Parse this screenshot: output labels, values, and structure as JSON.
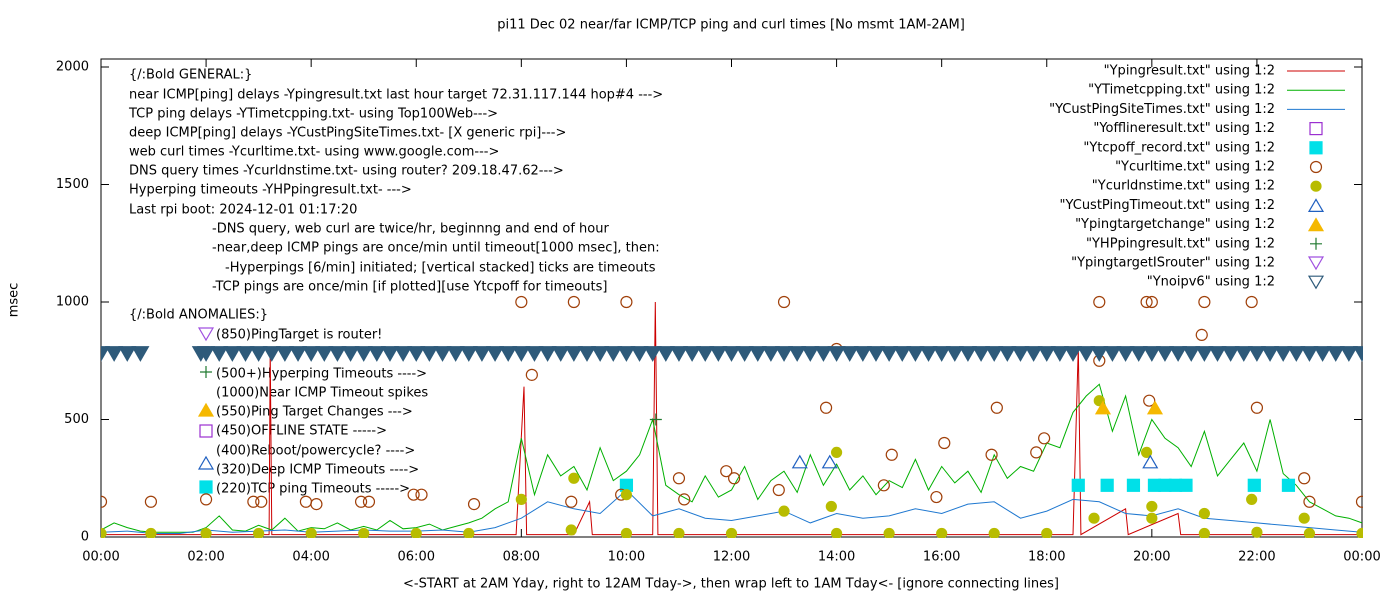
{
  "chart_data": {
    "type": "line",
    "title": "pi11 Dec 02  near/far ICMP/TCP ping and curl times [No msmt 1AM-2AM]",
    "x_label": "<-START at 2AM Yday, right to 12AM Tday->, then wrap left to 1AM Tday<- [ignore connecting lines]",
    "y_label": "msec",
    "xlim": [
      0,
      24
    ],
    "ylim": [
      0,
      2000
    ],
    "xticks": [
      {
        "value": 0,
        "label": "00:00"
      },
      {
        "value": 2,
        "label": "02:00"
      },
      {
        "value": 4,
        "label": "04:00"
      },
      {
        "value": 6,
        "label": "06:00"
      },
      {
        "value": 8,
        "label": "08:00"
      },
      {
        "value": 10,
        "label": "10:00"
      },
      {
        "value": 12,
        "label": "12:00"
      },
      {
        "value": 14,
        "label": "14:00"
      },
      {
        "value": 16,
        "label": "16:00"
      },
      {
        "value": 18,
        "label": "18:00"
      },
      {
        "value": 20,
        "label": "20:00"
      },
      {
        "value": 22,
        "label": "22:00"
      },
      {
        "value": 24,
        "label": "00:00"
      }
    ],
    "yticks": [
      0,
      500,
      1000,
      1500,
      2000
    ],
    "legend_position": "top-right",
    "annotations": [
      "{/:Bold GENERAL:}",
      "near ICMP[ping] delays -Ypingresult.txt last hour target 72.31.117.144 hop#4 --->",
      "TCP ping delays -YTimetcpping.txt- using Top100Web--->",
      "deep ICMP[ping] delays -YCustPingSiteTimes.txt- [X generic rpi]--->",
      "web curl times -Ycurltime.txt- using www.google.com--->",
      "DNS query times -Ycurldnstime.txt- using router? 209.18.47.62--->",
      "Hyperping timeouts -YHPpingresult.txt- --->",
      "Last rpi boot: 2024-12-01 01:17:20",
      "-DNS query, web curl are twice/hr, beginnng and end of hour",
      "-near,deep ICMP pings are once/min until timeout[1000 msec], then:",
      "-Hyperpings [6/min] initiated; [vertical stacked] ticks are timeouts",
      "-TCP pings are once/min [if plotted][use Ytcpoff for timeouts]",
      "{/:Bold ANOMALIES:}",
      "(850)PingTarget is router!",
      "(500+)Hyperping Timeouts ---->",
      "(1000)Near ICMP Timeout spikes",
      "(550)Ping Target Changes --->",
      "(450)OFFLINE STATE ----->",
      "(400)Reboot/powercycle? ---->",
      "(320)Deep ICMP Timeouts ---->",
      "(220)TCP ping Timeouts ----->"
    ],
    "series": [
      {
        "name": "\"Ypingresult.txt\" using 1:2",
        "color": "#cc0000",
        "style": "line",
        "x": [
          0,
          3.2,
          3.22,
          3.25,
          7.9,
          8.05,
          8.1,
          9.0,
          9.3,
          9.35,
          10.5,
          10.55,
          10.6,
          18.5,
          18.6,
          18.65,
          19.5,
          19.55,
          20.5,
          20.55,
          24
        ],
        "values": [
          10,
          10,
          800,
          10,
          10,
          640,
          10,
          10,
          150,
          10,
          10,
          1000,
          10,
          10,
          810,
          10,
          120,
          10,
          100,
          10,
          10
        ]
      },
      {
        "name": "\"YTimetcpping.txt\" using 1:2",
        "color": "#00b000",
        "style": "line",
        "x": [
          0,
          0.25,
          0.5,
          0.75,
          1,
          1.25,
          1.5,
          1.75,
          2,
          2.25,
          2.5,
          2.75,
          3,
          3.25,
          3.5,
          3.75,
          4,
          4.25,
          4.5,
          4.75,
          5,
          5.25,
          5.5,
          5.75,
          6,
          6.25,
          6.5,
          6.75,
          7,
          7.25,
          7.5,
          7.75,
          8,
          8.25,
          8.5,
          8.75,
          9,
          9.25,
          9.5,
          9.75,
          10,
          10.25,
          10.5,
          10.75,
          11,
          11.25,
          11.5,
          11.75,
          12,
          12.25,
          12.5,
          12.75,
          13,
          13.25,
          13.5,
          13.75,
          14,
          14.25,
          14.5,
          14.75,
          15,
          15.25,
          15.5,
          15.75,
          16,
          16.25,
          16.5,
          16.75,
          17,
          17.25,
          17.5,
          17.75,
          18,
          18.25,
          18.5,
          18.75,
          19,
          19.25,
          19.5,
          19.75,
          20,
          20.25,
          20.5,
          20.75,
          21,
          21.25,
          21.5,
          21.75,
          22,
          22.25,
          22.5,
          22.75,
          23,
          23.25,
          23.5,
          23.75,
          24
        ],
        "values": [
          30,
          60,
          40,
          25,
          20,
          20,
          20,
          20,
          40,
          90,
          30,
          25,
          50,
          30,
          80,
          25,
          40,
          35,
          60,
          30,
          45,
          30,
          70,
          35,
          40,
          55,
          30,
          45,
          60,
          80,
          120,
          150,
          420,
          180,
          350,
          260,
          300,
          200,
          380,
          240,
          280,
          350,
          500,
          220,
          180,
          150,
          260,
          170,
          200,
          300,
          160,
          240,
          280,
          190,
          350,
          220,
          310,
          200,
          260,
          180,
          240,
          210,
          330,
          200,
          300,
          230,
          280,
          190,
          350,
          250,
          300,
          280,
          400,
          380,
          530,
          600,
          650,
          450,
          600,
          350,
          500,
          420,
          380,
          300,
          450,
          260,
          330,
          400,
          280,
          500,
          270,
          220,
          150,
          120,
          90,
          80,
          60
        ]
      },
      {
        "name": "\"YCustPingSiteTimes.txt\" using 1:2",
        "color": "#1f78d0",
        "style": "line",
        "x": [
          0,
          0.5,
          1,
          1.5,
          2,
          2.5,
          3,
          3.5,
          4,
          4.5,
          5,
          5.5,
          6,
          6.5,
          7,
          7.5,
          8,
          8.5,
          9,
          9.5,
          10,
          10.5,
          11,
          11.5,
          12,
          12.5,
          13,
          13.5,
          14,
          14.5,
          15,
          15.5,
          16,
          16.5,
          17,
          17.5,
          18,
          18.5,
          19,
          19.5,
          20,
          20.5,
          21,
          21.5,
          22,
          22.5,
          23,
          23.5,
          24
        ],
        "values": [
          20,
          25,
          15,
          15,
          30,
          20,
          25,
          30,
          20,
          25,
          30,
          25,
          25,
          30,
          20,
          40,
          80,
          150,
          120,
          100,
          200,
          90,
          120,
          80,
          70,
          90,
          110,
          60,
          100,
          80,
          90,
          120,
          100,
          140,
          150,
          80,
          110,
          160,
          150,
          100,
          90,
          120,
          80,
          70,
          60,
          50,
          40,
          30,
          20
        ]
      },
      {
        "name": "\"Yofflineresult.txt\" using 1:2",
        "color": "#9b30d0",
        "style": "points",
        "marker": "square",
        "filled": false,
        "x": [],
        "values": []
      },
      {
        "name": "\"Ytcpoff_record.txt\" using 1:2",
        "color": "#00e0e8",
        "style": "points",
        "marker": "square",
        "filled": true,
        "x": [
          10.0,
          18.6,
          19.15,
          19.65,
          20.05,
          20.25,
          20.45,
          20.65,
          21.95,
          22.6
        ],
        "values": [
          220,
          220,
          220,
          220,
          220,
          220,
          220,
          220,
          220,
          220
        ]
      },
      {
        "name": "\"Ycurltime.txt\" using 1:2",
        "color": "#a0400a",
        "style": "points",
        "marker": "circle",
        "filled": false,
        "x": [
          0,
          0.95,
          2.0,
          2.9,
          3.05,
          3.9,
          4.1,
          4.95,
          5.1,
          5.95,
          6.1,
          7.1,
          8.0,
          8.2,
          8.95,
          9.0,
          9.9,
          10.0,
          11.0,
          11.1,
          11.9,
          12.05,
          12.9,
          13.0,
          13.8,
          14.0,
          14.9,
          15.05,
          15.9,
          16.05,
          16.95,
          17.05,
          17.8,
          17.95,
          19.0,
          19.0,
          19.9,
          19.95,
          20.0,
          20.95,
          21.0,
          21.9,
          22.0,
          22.9,
          23.0,
          24.0
        ],
        "values": [
          150,
          150,
          160,
          150,
          150,
          150,
          140,
          150,
          150,
          180,
          180,
          140,
          1000,
          690,
          150,
          1000,
          180,
          1000,
          250,
          160,
          280,
          250,
          200,
          1000,
          550,
          800,
          220,
          350,
          170,
          400,
          350,
          550,
          360,
          420,
          1000,
          750,
          1000,
          580,
          1000,
          860,
          1000,
          1000,
          550,
          250,
          150,
          150
        ]
      },
      {
        "name": "\"Ycurldnstime.txt\" using 1:2",
        "color": "#b8bc00",
        "style": "points",
        "marker": "circle",
        "filled": true,
        "x": [
          0,
          0.95,
          2,
          3,
          4,
          5,
          6,
          7,
          8,
          8.95,
          9,
          10,
          10,
          11,
          12,
          13,
          13.9,
          14,
          14,
          15,
          16,
          17,
          18,
          18.9,
          19,
          19.9,
          20,
          20,
          21,
          21,
          21.9,
          22,
          22.9,
          23,
          24
        ],
        "values": [
          15,
          15,
          15,
          15,
          15,
          15,
          15,
          15,
          160,
          30,
          250,
          180,
          15,
          15,
          15,
          110,
          130,
          360,
          15,
          15,
          15,
          15,
          15,
          80,
          580,
          360,
          130,
          80,
          100,
          15,
          160,
          20,
          80,
          15,
          15
        ]
      },
      {
        "name": "\"YCustPingTimeout.txt\" using 1:2",
        "color": "#2060c0",
        "style": "points",
        "marker": "triangle-up",
        "filled": false,
        "x": [
          13.3,
          13.87,
          19.97
        ],
        "values": [
          320,
          320,
          320
        ]
      },
      {
        "name": "\"Ypingtargetchange\" using 1:2",
        "color": "#f5b800",
        "style": "points",
        "marker": "triangle-up",
        "filled": true,
        "x": [
          19.07,
          20.06
        ],
        "values": [
          550,
          550
        ]
      },
      {
        "name": "\"YHPpingresult.txt\" using 1:2",
        "color": "#207a30",
        "style": "points",
        "marker": "cross",
        "filled": false,
        "x": [
          10.56
        ],
        "values": [
          500
        ]
      },
      {
        "name": "\"YpingtargetISrouter\" using 1:2",
        "color": "#a050e0",
        "style": "points",
        "marker": "triangle-down",
        "filled": false,
        "x": [],
        "values": []
      },
      {
        "name": "\"Ynoipv6\" using 1:2",
        "color": "#2e5a7a",
        "style": "points",
        "marker": "triangle-down",
        "filled": true,
        "x": [
          0,
          0.25,
          0.5,
          0.75,
          1.9,
          2,
          2.25,
          2.5,
          2.75,
          3,
          3.25,
          3.5,
          3.75,
          4,
          4.25,
          4.5,
          4.75,
          5,
          5.25,
          5.5,
          5.75,
          6,
          6.25,
          6.5,
          6.75,
          7,
          7.25,
          7.5,
          7.75,
          8,
          8.25,
          8.5,
          8.75,
          9,
          9.25,
          9.5,
          9.75,
          10,
          10.25,
          10.5,
          10.75,
          11,
          11.25,
          11.5,
          11.75,
          12,
          12.25,
          12.5,
          12.75,
          13,
          13.25,
          13.5,
          13.75,
          14,
          14.25,
          14.5,
          14.75,
          15,
          15.25,
          15.5,
          15.75,
          16,
          16.25,
          16.5,
          16.75,
          17,
          17.25,
          17.5,
          17.75,
          18,
          18.25,
          18.5,
          18.75,
          19,
          19.25,
          19.5,
          19.75,
          20,
          20.25,
          20.5,
          20.75,
          21,
          21.25,
          21.5,
          21.75,
          22,
          22.25,
          22.5,
          22.75,
          23,
          23.25,
          23.5,
          23.75,
          24
        ],
        "values": [
          780,
          780,
          780,
          780,
          780,
          780,
          780,
          780,
          780,
          780,
          780,
          780,
          780,
          780,
          780,
          780,
          780,
          780,
          780,
          780,
          780,
          780,
          780,
          780,
          780,
          780,
          780,
          780,
          780,
          780,
          780,
          780,
          780,
          780,
          780,
          780,
          780,
          780,
          780,
          780,
          780,
          780,
          780,
          780,
          780,
          780,
          780,
          780,
          780,
          780,
          780,
          780,
          780,
          780,
          780,
          780,
          780,
          780,
          780,
          780,
          780,
          780,
          780,
          780,
          780,
          780,
          780,
          780,
          780,
          780,
          780,
          780,
          780,
          780,
          780,
          780,
          780,
          780,
          780,
          780,
          780,
          780,
          780,
          780,
          780,
          780,
          780,
          780,
          780,
          780,
          780,
          780,
          780,
          780
        ]
      }
    ]
  }
}
